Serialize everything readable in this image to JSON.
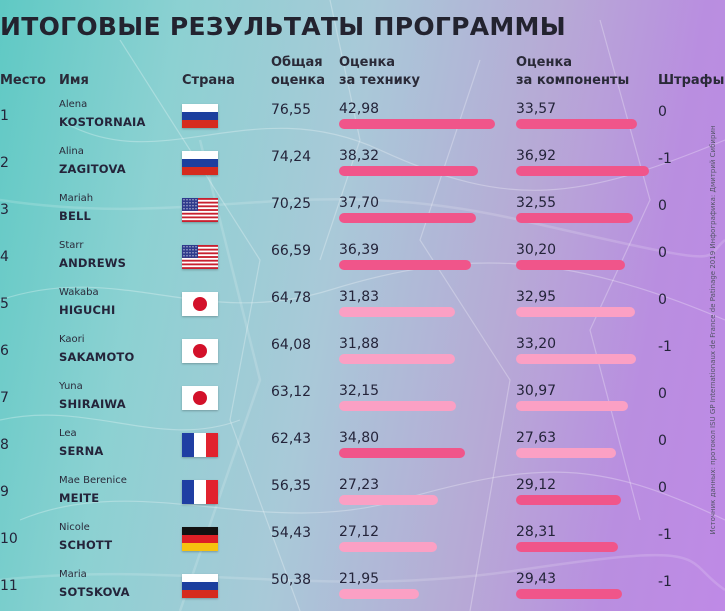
{
  "title": "ИТОГОВЫЕ РЕЗУЛЬТАТЫ ПРОГРАММЫ",
  "headers": {
    "place": "Место",
    "name": "Имя",
    "country": "Страна",
    "total_line1": "Общая",
    "total_line2": "оценка",
    "tech_line1": "Оценка",
    "tech_line2": "за технику",
    "comp_line1": "Оценка",
    "comp_line2": "за компоненты",
    "penalty": "Штрафы"
  },
  "credit": "Источник данных: протокол ISU GP Internationaux de France de Patinage 2019 Инфографика: Дмитрий Сибирин",
  "colors": {
    "bar_dark": "#f0558a",
    "bar_light": "#fba0c4",
    "accent": "#f0558a"
  },
  "chart_data": {
    "type": "table",
    "title": "ИТОГОВЫЕ РЕЗУЛЬТАТЫ ПРОГРАММЫ",
    "rows": [
      {
        "place": "1",
        "first": "Alena",
        "last": "KOSTORNAIA",
        "country": "RUS",
        "flag": "ru",
        "total": "76,55",
        "tech": "42,98",
        "tech_value": 42.98,
        "tech_highlight": true,
        "comp": "33,57",
        "comp_value": 33.57,
        "comp_highlight": true,
        "penalty": "0"
      },
      {
        "place": "2",
        "first": "Alina",
        "last": "ZAGITOVA",
        "country": "RUS",
        "flag": "ru",
        "total": "74,24",
        "tech": "38,32",
        "tech_value": 38.32,
        "tech_highlight": true,
        "comp": "36,92",
        "comp_value": 36.92,
        "comp_highlight": true,
        "penalty": "-1"
      },
      {
        "place": "3",
        "first": "Mariah",
        "last": "BELL",
        "country": "USA",
        "flag": "us",
        "total": "70,25",
        "tech": "37,70",
        "tech_value": 37.7,
        "tech_highlight": true,
        "comp": "32,55",
        "comp_value": 32.55,
        "comp_highlight": true,
        "penalty": "0"
      },
      {
        "place": "4",
        "first": "Starr",
        "last": "ANDREWS",
        "country": "USA",
        "flag": "us",
        "total": "66,59",
        "tech": "36,39",
        "tech_value": 36.39,
        "tech_highlight": true,
        "comp": "30,20",
        "comp_value": 30.2,
        "comp_highlight": true,
        "penalty": "0"
      },
      {
        "place": "5",
        "first": "Wakaba",
        "last": "HIGUCHI",
        "country": "JPN",
        "flag": "jp",
        "total": "64,78",
        "tech": "31,83",
        "tech_value": 31.83,
        "tech_highlight": false,
        "comp": "32,95",
        "comp_value": 32.95,
        "comp_highlight": false,
        "penalty": "0"
      },
      {
        "place": "6",
        "first": "Kaori",
        "last": "SAKAMOTO",
        "country": "JPN",
        "flag": "jp",
        "total": "64,08",
        "tech": "31,88",
        "tech_value": 31.88,
        "tech_highlight": false,
        "comp": "33,20",
        "comp_value": 33.2,
        "comp_highlight": false,
        "penalty": "-1"
      },
      {
        "place": "7",
        "first": "Yuna",
        "last": "SHIRAIWA",
        "country": "JPN",
        "flag": "jp",
        "total": "63,12",
        "tech": "32,15",
        "tech_value": 32.15,
        "tech_highlight": false,
        "comp": "30,97",
        "comp_value": 30.97,
        "comp_highlight": false,
        "penalty": "0"
      },
      {
        "place": "8",
        "first": "Lea",
        "last": "SERNA",
        "country": "FRA",
        "flag": "fr",
        "total": "62,43",
        "tech": "34,80",
        "tech_value": 34.8,
        "tech_highlight": true,
        "comp": "27,63",
        "comp_value": 27.63,
        "comp_highlight": false,
        "penalty": "0"
      },
      {
        "place": "9",
        "first": "Mae Berenice",
        "last": "MEITE",
        "country": "FRA",
        "flag": "fr",
        "total": "56,35",
        "tech": "27,23",
        "tech_value": 27.23,
        "tech_highlight": false,
        "comp": "29,12",
        "comp_value": 29.12,
        "comp_highlight": true,
        "penalty": "0"
      },
      {
        "place": "10",
        "first": "Nicole",
        "last": "SCHOTT",
        "country": "GER",
        "flag": "de",
        "total": "54,43",
        "tech": "27,12",
        "tech_value": 27.12,
        "tech_highlight": false,
        "comp": "28,31",
        "comp_value": 28.31,
        "comp_highlight": true,
        "penalty": "-1"
      },
      {
        "place": "11",
        "first": "Maria",
        "last": "SOTSKOVA",
        "country": "RUS",
        "flag": "ru",
        "total": "50,38",
        "tech": "21,95",
        "tech_value": 21.95,
        "tech_highlight": false,
        "comp": "29,43",
        "comp_value": 29.43,
        "comp_highlight": true,
        "penalty": "-1"
      }
    ]
  }
}
